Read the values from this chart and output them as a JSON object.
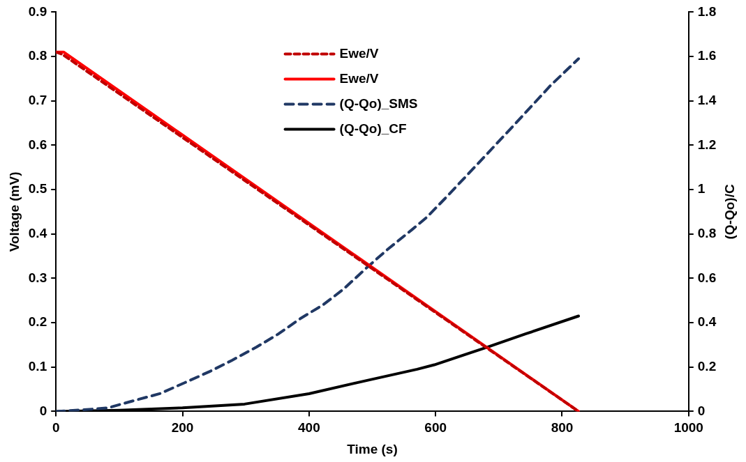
{
  "chart_data": {
    "type": "line",
    "xlabel": "Time (s)",
    "ylabel": "Voltage (mV)",
    "y2label": "(Q-Qo)/C",
    "xlim": [
      0,
      1000
    ],
    "xticks": [
      0,
      200,
      400,
      600,
      800,
      1000
    ],
    "ylim": [
      0,
      0.9
    ],
    "yticks": [
      0,
      0.1,
      0.2,
      0.3,
      0.4,
      0.5,
      0.6,
      0.7,
      0.8,
      0.9
    ],
    "y2lim": [
      0,
      1.8
    ],
    "y2ticks": [
      0,
      0.2,
      0.4,
      0.6,
      0.8,
      1,
      1.2,
      1.4,
      1.6,
      1.8
    ],
    "grid": false,
    "legend": "top",
    "marker": "none",
    "series": [
      {
        "name": "Ewe/V",
        "color": "#c00000",
        "line_style": "dashed",
        "x": [
          0,
          10,
          826
        ],
        "values": [
          0.81,
          0.805,
          0
        ]
      },
      {
        "name": "Ewe/V",
        "color": "#ff0000",
        "line_style": "solid",
        "x": [
          0,
          12,
          826
        ],
        "values": [
          0.81,
          0.81,
          0
        ]
      },
      {
        "name": "(Q-Qo)_SMS",
        "color": "#203864",
        "line_style": "dashed",
        "axis": "y2",
        "x": [
          0,
          43,
          82,
          125,
          164,
          204,
          243,
          278,
          317,
          352,
          387,
          422,
          454,
          492,
          524,
          563,
          586,
          614,
          668,
          727,
          782,
          826
        ],
        "values": [
          0,
          0.007,
          0.016,
          0.05,
          0.08,
          0.13,
          0.18,
          0.23,
          0.29,
          0.35,
          0.42,
          0.48,
          0.55,
          0.65,
          0.73,
          0.82,
          0.875,
          0.957,
          1.12,
          1.3,
          1.47,
          1.59
        ]
      },
      {
        "name": "(Q-Qo)_CF",
        "color": "#000000",
        "line_style": "solid",
        "axis": "y2",
        "x": [
          0,
          100,
          200,
          298,
          400,
          492,
          571,
          598,
          682,
          743,
          826
        ],
        "values": [
          0,
          0.005,
          0.016,
          0.033,
          0.08,
          0.14,
          0.19,
          0.21,
          0.29,
          0.35,
          0.43
        ]
      }
    ]
  }
}
